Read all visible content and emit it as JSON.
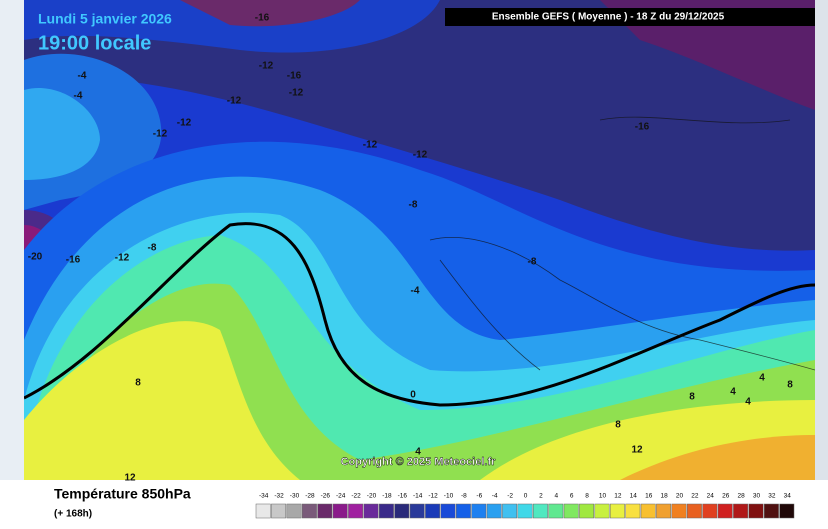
{
  "header": {
    "date": "Lundi 5 janvier 2026",
    "time": "19:00 locale",
    "run": "Ensemble GEFS  ( Moyenne )  -  18 Z du 29/12/2025"
  },
  "map": {
    "contour_labels": [
      "-16",
      "-4",
      "-4",
      "-12",
      "-12",
      "-16",
      "-12",
      "-12",
      "-12",
      "-12",
      "-12",
      "-16",
      "-20",
      "-16",
      "-12",
      "-8",
      "-8",
      "-4",
      "-8",
      "0",
      "8",
      "4",
      "8",
      "12",
      "12",
      "4",
      "4",
      "4",
      "8",
      "8"
    ],
    "copyright": "Copyright © 2025 Meteociel.fr"
  },
  "legend": {
    "title": "Température 850hPa",
    "subtitle": "(+ 168h)",
    "scale": [
      -34,
      -32,
      -30,
      -28,
      -26,
      -24,
      -22,
      -20,
      -18,
      -16,
      -14,
      -12,
      -10,
      -8,
      -6,
      -4,
      -2,
      0,
      2,
      4,
      6,
      8,
      10,
      12,
      14,
      16,
      18,
      20,
      22,
      24,
      26,
      28,
      30,
      32,
      34
    ],
    "colors": [
      "#e8e8e8",
      "#c8c8c8",
      "#a8a8a8",
      "#7a5a7a",
      "#6a2a6a",
      "#8a1a8a",
      "#a020a0",
      "#6a2a9a",
      "#3a2a8a",
      "#2a2a7a",
      "#2a3a9a",
      "#1a3ab8",
      "#1a4ad8",
      "#1560e8",
      "#1e80f0",
      "#2aa0f0",
      "#40c0f0",
      "#40d8e8",
      "#50e8c0",
      "#60e890",
      "#80e860",
      "#a0e840",
      "#c8f040",
      "#e8f040",
      "#f8e040",
      "#f8c030",
      "#f0a030",
      "#f08020",
      "#e86020",
      "#e04020",
      "#d02020",
      "#b01818",
      "#801010",
      "#501010",
      "#200808"
    ]
  }
}
